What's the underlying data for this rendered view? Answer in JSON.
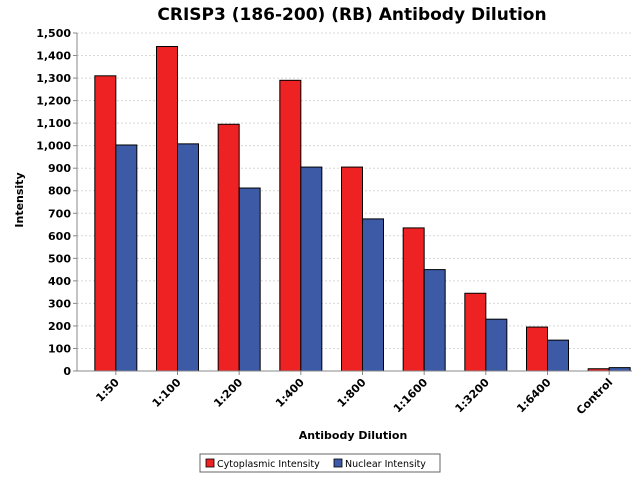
{
  "chart_data": {
    "type": "bar",
    "title": "CRISP3 (186-200) (RB) Antibody Dilution",
    "xlabel": "Antibody Dilution",
    "ylabel": "Intensity",
    "categories": [
      "1:50",
      "1:100",
      "1:200",
      "1:400",
      "1:800",
      "1:1600",
      "1:3200",
      "1:6400",
      "Control"
    ],
    "series": [
      {
        "name": "Cytoplasmic Intensity",
        "color": "#ee2222",
        "values": [
          1310,
          1440,
          1095,
          1290,
          905,
          635,
          345,
          195,
          10
        ]
      },
      {
        "name": "Nuclear Intensity",
        "color": "#3c5aa6",
        "values": [
          1003,
          1008,
          812,
          905,
          675,
          450,
          230,
          137,
          15
        ]
      }
    ],
    "ylim": [
      0,
      1500
    ],
    "yticks": [
      "0",
      "100",
      "200",
      "300",
      "400",
      "500",
      "600",
      "700",
      "800",
      "900",
      "1,000",
      "1,100",
      "1,200",
      "1,300",
      "1,400",
      "1,500"
    ],
    "grid": true,
    "legend_position": "bottom-center"
  }
}
